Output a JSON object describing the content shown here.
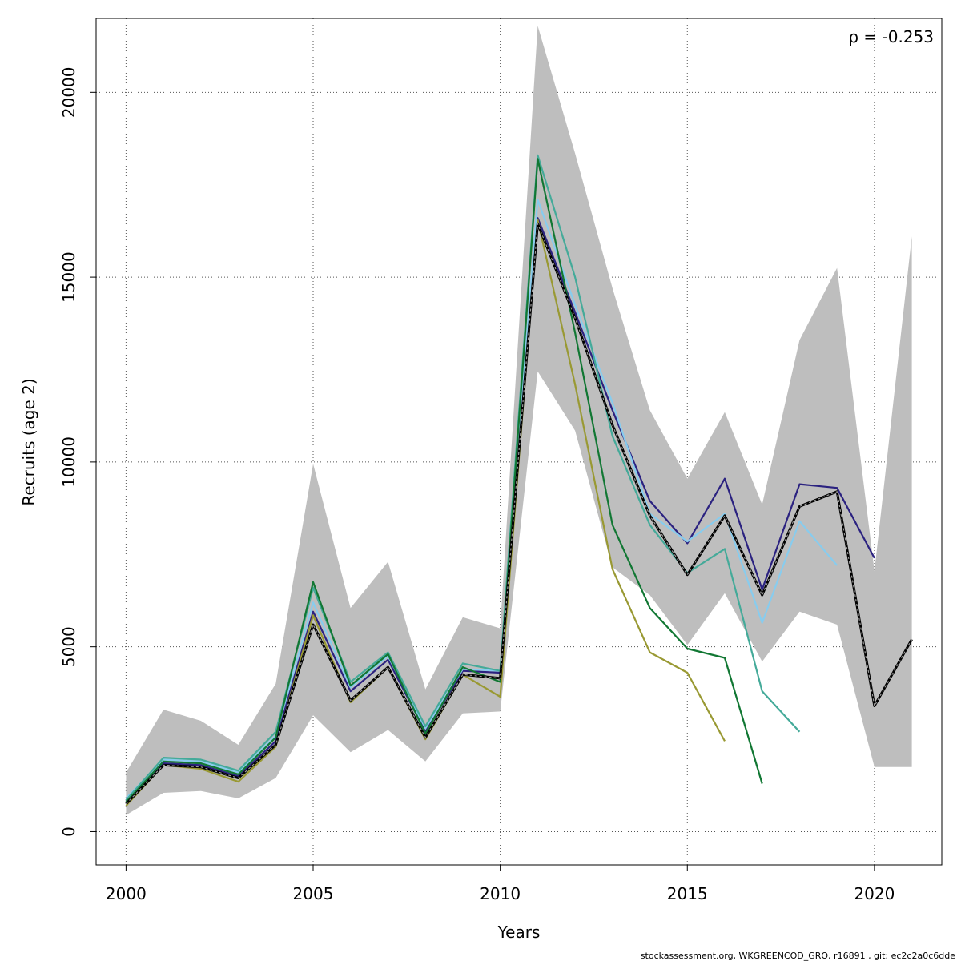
{
  "chart_data": {
    "type": "line",
    "xlabel": "Years",
    "ylabel": "Recruits (age 2)",
    "xlim": [
      1999.2,
      2021.8
    ],
    "ylim": [
      -900,
      22000
    ],
    "x_ticks": [
      2000,
      2005,
      2010,
      2015,
      2020
    ],
    "x_tick_labels": [
      "2000",
      "2005",
      "2010",
      "2015",
      "2020"
    ],
    "y_ticks": [
      0,
      5000,
      10000,
      15000,
      20000
    ],
    "y_tick_labels": [
      "0",
      "5000",
      "10000",
      "15000",
      "20000"
    ],
    "grid": true,
    "annotation": "ρ = -0.253",
    "footer": "stockassessment.org, WKGREENCOD_GRO, r16891 , git: ec2c2a0c6dde",
    "band": {
      "x": [
        2000,
        2001,
        2002,
        2003,
        2004,
        2005,
        2006,
        2007,
        2008,
        2009,
        2010,
        2011,
        2012,
        2013,
        2014,
        2015,
        2016,
        2017,
        2018,
        2019,
        2020,
        2021
      ],
      "upper": [
        1600,
        3300,
        3000,
        2350,
        4000,
        9950,
        6050,
        7300,
        3850,
        5800,
        5500,
        21800,
        18350,
        14700,
        11400,
        9550,
        11350,
        8850,
        13300,
        15250,
        7050,
        16100
      ],
      "lower": [
        450,
        1050,
        1100,
        900,
        1450,
        3150,
        2150,
        2750,
        1900,
        3200,
        3250,
        12450,
        10850,
        7150,
        6400,
        5050,
        6450,
        4600,
        5950,
        5600,
        1750,
        1750
      ],
      "color": "#bebebe"
    },
    "series": [
      {
        "color": "#2b2280",
        "x": [
          2000,
          2001,
          2002,
          2003,
          2004,
          2005,
          2006,
          2007,
          2008,
          2009,
          2010,
          2011,
          2012,
          2013,
          2014,
          2015,
          2016,
          2017,
          2018,
          2019,
          2020
        ],
        "values": [
          850,
          1850,
          1800,
          1500,
          2450,
          5950,
          3800,
          4650,
          2700,
          4350,
          4300,
          16600,
          14050,
          11400,
          8950,
          7800,
          9550,
          6550,
          9400,
          9300,
          7400
        ]
      },
      {
        "color": "#88ccee",
        "x": [
          2000,
          2001,
          2002,
          2003,
          2004,
          2005,
          2006,
          2007,
          2008,
          2009,
          2010,
          2011,
          2012,
          2013,
          2014,
          2015,
          2016,
          2017,
          2018,
          2019
        ],
        "values": [
          900,
          1950,
          1900,
          1600,
          2600,
          6200,
          3900,
          4750,
          2800,
          4400,
          4350,
          17100,
          14250,
          11600,
          8600,
          7850,
          8600,
          5650,
          8400,
          7200
        ]
      },
      {
        "color": "#44aa99",
        "x": [
          2000,
          2001,
          2002,
          2003,
          2004,
          2005,
          2006,
          2007,
          2008,
          2009,
          2010,
          2011,
          2012,
          2013,
          2014,
          2015,
          2016,
          2017,
          2018
        ],
        "values": [
          850,
          2000,
          1950,
          1650,
          2700,
          6600,
          4050,
          4850,
          2850,
          4550,
          4350,
          18300,
          15000,
          10700,
          8300,
          7000,
          7650,
          3800,
          2700
        ]
      },
      {
        "color": "#117733",
        "x": [
          2000,
          2001,
          2002,
          2003,
          2004,
          2005,
          2006,
          2007,
          2008,
          2009,
          2010,
          2011,
          2012,
          2013,
          2014,
          2015,
          2016,
          2017
        ],
        "values": [
          800,
          1900,
          1850,
          1550,
          2550,
          6750,
          3950,
          4800,
          2650,
          4450,
          4050,
          18200,
          13500,
          8300,
          6050,
          4950,
          4700,
          1300
        ]
      },
      {
        "color": "#999933",
        "x": [
          2000,
          2001,
          2002,
          2003,
          2004,
          2005,
          2006,
          2007,
          2008,
          2009,
          2010,
          2011,
          2012,
          2013,
          2014,
          2015,
          2016
        ],
        "values": [
          700,
          1800,
          1700,
          1350,
          2300,
          5850,
          3500,
          4450,
          2500,
          4250,
          3650,
          16550,
          12100,
          7100,
          4850,
          4300,
          2450
        ]
      }
    ],
    "base_series": {
      "x": [
        2000,
        2001,
        2002,
        2003,
        2004,
        2005,
        2006,
        2007,
        2008,
        2009,
        2010,
        2011,
        2012,
        2013,
        2014,
        2015,
        2016,
        2017,
        2018,
        2019,
        2020,
        2021
      ],
      "values": [
        750,
        1800,
        1750,
        1450,
        2350,
        5600,
        3550,
        4450,
        2550,
        4250,
        4150,
        16450,
        13900,
        11000,
        8550,
        6950,
        8550,
        6400,
        8800,
        9200,
        3400,
        5200
      ],
      "color": "#000000"
    }
  }
}
